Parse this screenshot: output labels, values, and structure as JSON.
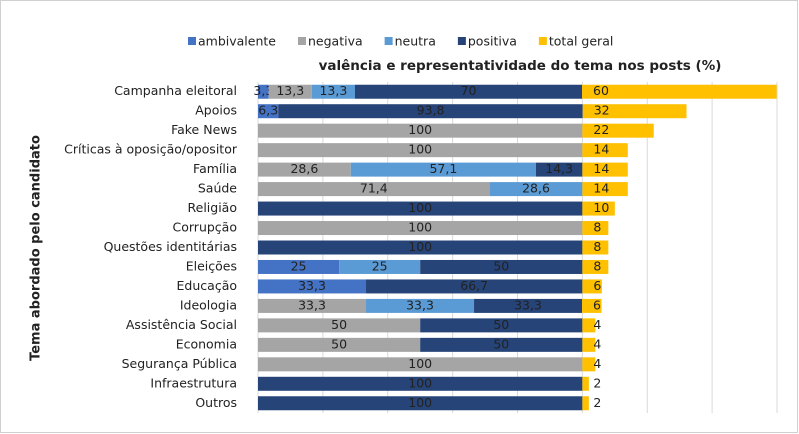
{
  "chart_data": {
    "type": "stacked-barh",
    "title": "valência e representatividade do tema nos posts (%)",
    "y_label": "Tema abordado pelo candidato",
    "legend": "top",
    "grid": true,
    "xlim": [
      0,
      160
    ],
    "xticks": [
      0,
      20,
      40,
      60,
      80,
      100,
      120,
      140,
      160
    ],
    "categories": [
      "Campanha eleitoral",
      "Apoios",
      "Fake News",
      "Críticas à oposição/opositor",
      "Família",
      "Saúde",
      "Religião",
      "Corrupção",
      "Questões identitárias",
      "Eleições",
      "Educação",
      "Ideologia",
      "Assistência Social",
      "Economia",
      "Segurança Pública",
      "Infraestrutura",
      "Outros"
    ],
    "series": [
      {
        "name": "ambivalente",
        "color": "#4472c4",
        "values": [
          3.3,
          6.3,
          null,
          null,
          null,
          null,
          null,
          null,
          null,
          25,
          33.3,
          null,
          null,
          null,
          null,
          null,
          null
        ],
        "value_labels": [
          "3,3",
          "6,3",
          null,
          null,
          null,
          null,
          null,
          null,
          null,
          "25",
          "33,3",
          null,
          null,
          null,
          null,
          null,
          null
        ]
      },
      {
        "name": "negativa",
        "color": "#a5a5a5",
        "values": [
          13.3,
          null,
          100,
          100,
          28.6,
          71.4,
          null,
          100,
          null,
          null,
          null,
          33.3,
          50,
          50,
          100,
          null,
          null
        ],
        "value_labels": [
          "13,3",
          null,
          "100",
          "100",
          "28,6",
          "71,4",
          null,
          "100",
          null,
          null,
          null,
          "33,3",
          "50",
          "50",
          "100",
          null,
          null
        ]
      },
      {
        "name": "neutra",
        "color": "#5b9bd5",
        "values": [
          13.3,
          null,
          null,
          null,
          57.1,
          28.6,
          null,
          null,
          null,
          25,
          null,
          33.3,
          null,
          null,
          null,
          null,
          null
        ],
        "value_labels": [
          "13,3",
          null,
          null,
          null,
          "57,1",
          "28,6",
          null,
          null,
          null,
          "25",
          null,
          "33,3",
          null,
          null,
          null,
          null,
          null
        ]
      },
      {
        "name": "positiva",
        "color": "#264478",
        "values": [
          70,
          93.8,
          null,
          null,
          14.3,
          null,
          100,
          null,
          100,
          50,
          66.7,
          33.3,
          50,
          50,
          null,
          100,
          100
        ],
        "value_labels": [
          "70",
          "93,8",
          null,
          null,
          "14,3",
          null,
          "100",
          null,
          "100",
          "50",
          "66,7",
          "33,3",
          "50",
          "50",
          null,
          "100",
          "100"
        ]
      },
      {
        "name": "total geral",
        "color": "#ffc000",
        "values": [
          60,
          32,
          22,
          14,
          14,
          14,
          10,
          8,
          8,
          8,
          6,
          6,
          4,
          4,
          4,
          2,
          2
        ],
        "value_labels": [
          "60",
          "32",
          "22",
          "14",
          "14",
          "14",
          "10",
          "8",
          "8",
          "8",
          "6",
          "6",
          "4",
          "4",
          "4",
          "2",
          "2"
        ]
      }
    ]
  }
}
